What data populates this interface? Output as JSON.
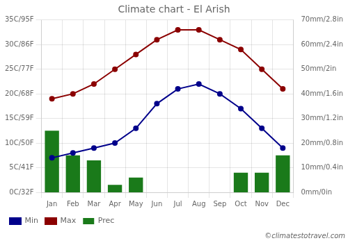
{
  "chart_data": {
    "type": "bar",
    "title": "Climate chart - El Arish",
    "categories": [
      "Jan",
      "Feb",
      "Mar",
      "Apr",
      "May",
      "Jun",
      "Jul",
      "Aug",
      "Sep",
      "Oct",
      "Nov",
      "Dec"
    ],
    "series": [
      {
        "name": "Prec",
        "type": "bar",
        "color": "#1a7a1a",
        "axis": "y2",
        "values": [
          25,
          15,
          13,
          3,
          6,
          0,
          0,
          0,
          0,
          8,
          8,
          15
        ]
      },
      {
        "name": "Min",
        "type": "line",
        "color": "#00008B",
        "marker": "circle",
        "values": [
          7,
          8,
          9,
          10,
          13,
          18,
          21,
          22,
          20,
          17,
          13,
          9
        ]
      },
      {
        "name": "Max",
        "type": "line",
        "color": "#8B0000",
        "marker": "circle",
        "values": [
          19,
          20,
          22,
          25,
          28,
          31,
          33,
          33,
          31,
          29,
          25,
          21
        ]
      }
    ],
    "ylim": [
      0,
      35
    ],
    "yticks": [
      {
        "value": 0,
        "label": "0C/32F"
      },
      {
        "value": 5,
        "label": "5C/41F"
      },
      {
        "value": 10,
        "label": "10C/50F"
      },
      {
        "value": 15,
        "label": "15C/59F"
      },
      {
        "value": 20,
        "label": "20C/68F"
      },
      {
        "value": 25,
        "label": "25C/77F"
      },
      {
        "value": 30,
        "label": "30C/86F"
      },
      {
        "value": 35,
        "label": "35C/95F"
      }
    ],
    "y2lim": [
      0,
      70
    ],
    "y2ticks": [
      {
        "value": 0,
        "label": "0mm/0in"
      },
      {
        "value": 10,
        "label": "10mm/0.4in"
      },
      {
        "value": 20,
        "label": "20mm/0.8in"
      },
      {
        "value": 30,
        "label": "30mm/1.2in"
      },
      {
        "value": 40,
        "label": "40mm/1.6in"
      },
      {
        "value": 50,
        "label": "50mm/2in"
      },
      {
        "value": 60,
        "label": "60mm/2.4in"
      },
      {
        "value": 70,
        "label": "70mm/2.8in"
      }
    ],
    "grid": true,
    "legend": "lower left",
    "annotations": [
      "©climatestotravel.com"
    ]
  }
}
